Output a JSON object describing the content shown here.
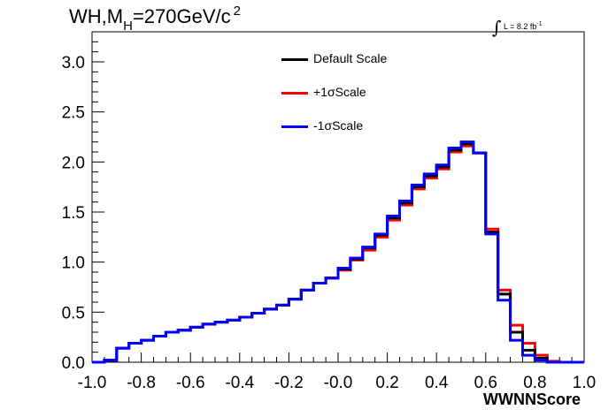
{
  "title": {
    "main": "WH,M",
    "sub": "H",
    "rest": "=270GeV/c",
    "sup": "2"
  },
  "lumi": {
    "integral": "∫",
    "text": "L = 8.2 fb",
    "sup": "-1"
  },
  "chart_data": {
    "type": "line",
    "step": true,
    "xlabel": "WWNNScore",
    "ylabel": "",
    "xlim": [
      -1.0,
      1.0
    ],
    "ylim": [
      0.0,
      3.3
    ],
    "xticks": [
      "-1.0",
      "-0.8",
      "-0.6",
      "-0.4",
      "-0.2",
      "-0.0",
      "0.2",
      "0.4",
      "0.6",
      "0.8",
      "1.0"
    ],
    "yticks": [
      "0.0",
      "0.5",
      "1.0",
      "1.5",
      "2.0",
      "2.5",
      "3.0"
    ],
    "bin_edges": [
      -1.0,
      -0.95,
      -0.9,
      -0.85,
      -0.8,
      -0.75,
      -0.7,
      -0.65,
      -0.6,
      -0.55,
      -0.5,
      -0.45,
      -0.4,
      -0.35,
      -0.3,
      -0.25,
      -0.2,
      -0.15,
      -0.1,
      -0.05,
      0.0,
      0.05,
      0.1,
      0.15,
      0.2,
      0.25,
      0.3,
      0.35,
      0.4,
      0.45,
      0.5,
      0.55,
      0.6,
      0.65,
      0.7,
      0.75,
      0.8,
      0.85,
      0.9,
      0.95,
      1.0
    ],
    "legend_position": "top-center",
    "series": [
      {
        "name": "Default Scale",
        "color": "#000000",
        "values": [
          0.0,
          0.02,
          0.14,
          0.19,
          0.22,
          0.26,
          0.3,
          0.32,
          0.35,
          0.38,
          0.4,
          0.42,
          0.45,
          0.49,
          0.53,
          0.57,
          0.63,
          0.72,
          0.79,
          0.84,
          0.93,
          1.03,
          1.14,
          1.27,
          1.44,
          1.59,
          1.75,
          1.86,
          1.95,
          2.12,
          2.18,
          2.09,
          1.3,
          0.68,
          0.3,
          0.12,
          0.04,
          0.0,
          0.0,
          0.0
        ]
      },
      {
        "name": "+1σScale",
        "color": "#ff0000",
        "values": [
          0.0,
          0.02,
          0.14,
          0.19,
          0.22,
          0.26,
          0.3,
          0.32,
          0.35,
          0.38,
          0.4,
          0.42,
          0.45,
          0.49,
          0.53,
          0.57,
          0.63,
          0.72,
          0.79,
          0.84,
          0.92,
          1.02,
          1.12,
          1.25,
          1.42,
          1.57,
          1.73,
          1.84,
          1.93,
          2.1,
          2.16,
          2.09,
          1.33,
          0.72,
          0.37,
          0.19,
          0.07,
          0.01,
          0.0,
          0.0
        ]
      },
      {
        "name": "-1σScale",
        "color": "#0000ff",
        "values": [
          0.0,
          0.02,
          0.14,
          0.19,
          0.22,
          0.26,
          0.3,
          0.32,
          0.35,
          0.38,
          0.4,
          0.42,
          0.45,
          0.49,
          0.53,
          0.57,
          0.63,
          0.72,
          0.79,
          0.84,
          0.94,
          1.04,
          1.15,
          1.28,
          1.46,
          1.61,
          1.77,
          1.88,
          1.97,
          2.14,
          2.2,
          2.09,
          1.28,
          0.62,
          0.22,
          0.07,
          0.02,
          0.0,
          0.0,
          0.0
        ]
      }
    ]
  }
}
